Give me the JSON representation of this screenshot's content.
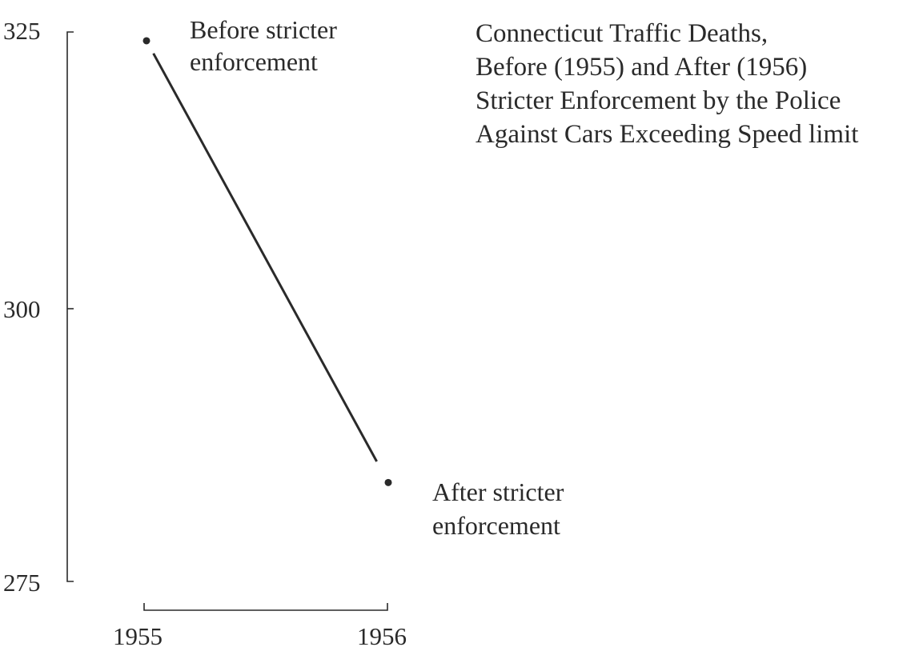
{
  "chart_data": {
    "type": "line",
    "title_lines": [
      "Connecticut Traffic Deaths,",
      "Before (1955) and After (1956)",
      "Stricter Enforcement by the Police",
      "Against Cars Exceeding Speed limit"
    ],
    "categories": [
      "1955",
      "1956"
    ],
    "values": [
      324.2,
      284.0
    ],
    "ylim": [
      275,
      325
    ],
    "yticks": [
      "325",
      "300",
      "275"
    ],
    "grid": false,
    "annotations": [
      {
        "lines": [
          "Before stricter",
          "enforcement"
        ]
      },
      {
        "lines": [
          "After stricter",
          "enforcement"
        ]
      }
    ]
  }
}
